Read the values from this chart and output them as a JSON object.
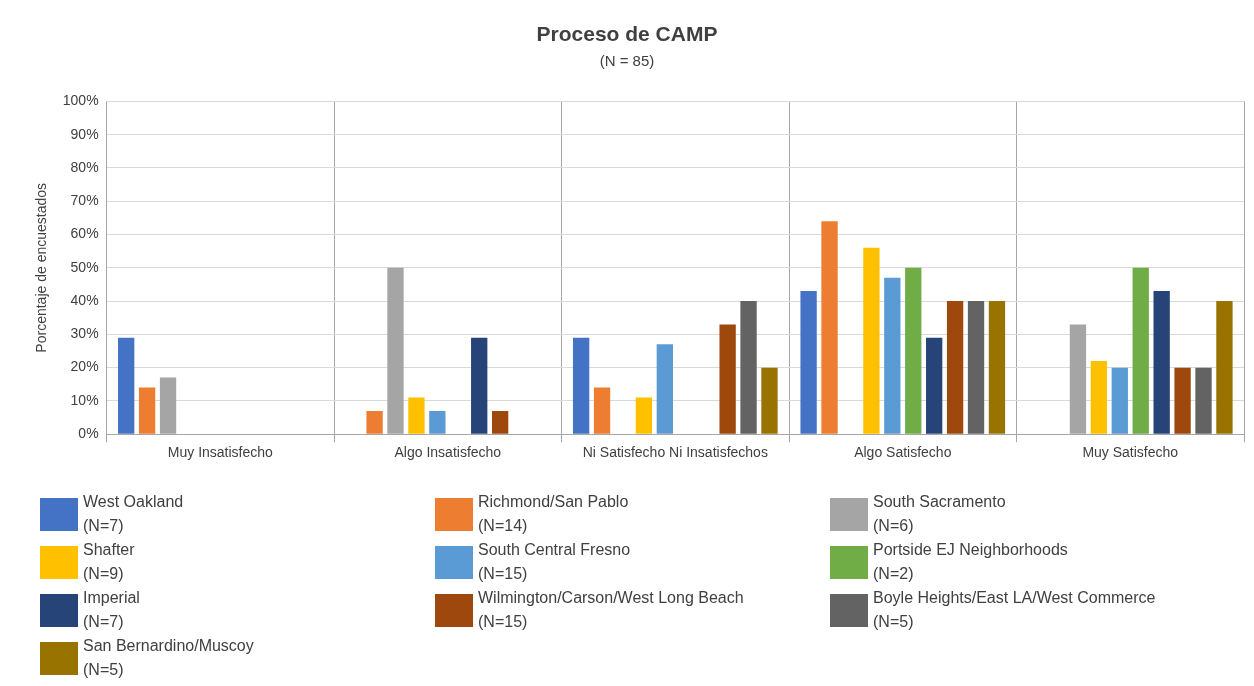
{
  "chart_data": {
    "type": "bar",
    "title": "Proceso de CAMP",
    "subtitle": "(N = 85)",
    "ylabel": "Porcentaje de encuestados",
    "categories": [
      "Muy Insatisfecho",
      "Algo Insatisfecho",
      "Ni Satisfecho Ni Insatisfechos",
      "Algo Satisfecho",
      "Muy Satisfecho"
    ],
    "series": [
      {
        "name": "West Oakland\n(N=7)",
        "color": "#4472c4",
        "values": [
          29,
          0,
          29,
          43,
          0
        ]
      },
      {
        "name": "Richmond/San Pablo\n(N=14)",
        "color": "#ed7d31",
        "values": [
          14,
          7,
          14,
          64,
          0
        ]
      },
      {
        "name": "South Sacramento\n(N=6)",
        "color": "#a5a5a5",
        "values": [
          17,
          50,
          0,
          0,
          33
        ]
      },
      {
        "name": "Shafter\n(N=9)",
        "color": "#ffc000",
        "values": [
          0,
          11,
          11,
          56,
          22
        ]
      },
      {
        "name": "South Central Fresno\n(N=15)",
        "color": "#5b9bd5",
        "values": [
          0,
          7,
          27,
          47,
          20
        ]
      },
      {
        "name": "Portside EJ Neighborhoods\n(N=2)",
        "color": "#70ad47",
        "values": [
          0,
          0,
          0,
          50,
          50
        ]
      },
      {
        "name": "Imperial\n(N=7)",
        "color": "#264478",
        "values": [
          0,
          29,
          0,
          29,
          43
        ]
      },
      {
        "name": "Wilmington/Carson/West Long Beach\n(N=15)",
        "color": "#9e480e",
        "values": [
          0,
          7,
          33,
          40,
          20
        ]
      },
      {
        "name": "Boyle Heights/East LA/West Commerce\n(N=5)",
        "color": "#636363",
        "values": [
          0,
          0,
          40,
          40,
          20
        ]
      },
      {
        "name": "San Bernardino/Muscoy\n(N=5)",
        "color": "#997300",
        "values": [
          0,
          0,
          20,
          40,
          40
        ]
      }
    ],
    "ylim": [
      0,
      100
    ],
    "yticks": [
      {
        "value": 0,
        "label": "0%"
      },
      {
        "value": 10,
        "label": "10%"
      },
      {
        "value": 20,
        "label": "20%"
      },
      {
        "value": 30,
        "label": "30%"
      },
      {
        "value": 40,
        "label": "40%"
      },
      {
        "value": 50,
        "label": "50%"
      },
      {
        "value": 60,
        "label": "60%"
      },
      {
        "value": 70,
        "label": "70%"
      },
      {
        "value": 80,
        "label": "80%"
      },
      {
        "value": 90,
        "label": "90%"
      },
      {
        "value": 100,
        "label": "100%"
      }
    ],
    "grid": true,
    "legend": "bottom"
  }
}
